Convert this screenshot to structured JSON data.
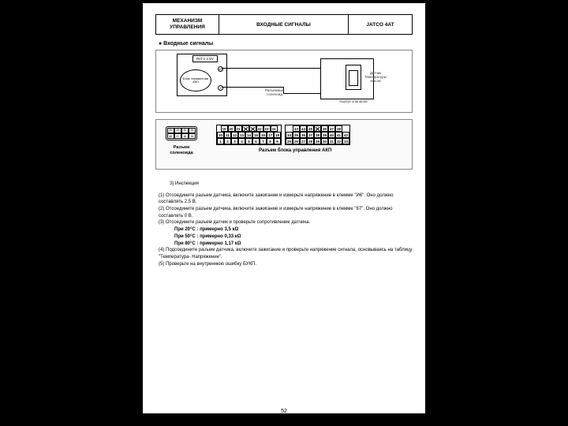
{
  "header": {
    "col1": "МЕХАНИЗМ УПРАВЛЕНИЯ",
    "col2": "ВХОДНЫЕ СИГНАЛЫ",
    "col3": "JATCO 4AT"
  },
  "section_title": "● Входные сигналы",
  "wiring": {
    "ref": "Ref V 2.5V",
    "ecu": "Блок Управления АКП",
    "pin_a": "46",
    "pin_b": "4",
    "solenoid_conn": "Разъемный соленоид",
    "sensor": "Датчик Температуры масла",
    "body": "Корпус клапанов",
    "pin_r1": "80",
    "pin_r2": "87"
  },
  "sol_connector": {
    "pins": [
      "84",
      "83",
      "82",
      "81",
      "88",
      "87",
      "86",
      "85"
    ],
    "label": "Разъем соленоида"
  },
  "akp_connector": {
    "label": "Разъем блока управления АКП",
    "block1": [
      [
        "19",
        "20",
        "21",
        "",
        "",
        "22",
        "23",
        "24"
      ],
      [
        "10",
        "11",
        "12",
        "13",
        "14",
        "15",
        "16",
        "17",
        "18"
      ],
      [
        "1",
        "2",
        "3",
        "4",
        "5",
        "6",
        "7",
        "8",
        "9"
      ]
    ],
    "block1_crossed": [
      [
        0,
        3
      ],
      [
        0,
        4
      ]
    ],
    "block2": [
      [
        "43",
        "44",
        "45",
        "",
        "46",
        "47",
        "48"
      ],
      [
        "34",
        "35",
        "36",
        "37",
        "38",
        "39",
        "40",
        "41",
        "42"
      ],
      [
        "25",
        "26",
        "27",
        "28",
        "29",
        "30",
        "31",
        "32",
        "33"
      ]
    ],
    "block2_crossed": [
      [
        0,
        3
      ]
    ]
  },
  "inspection": {
    "title": "3) Инспекция",
    "lines": [
      "(1) Отсоедините разъем датчика, включите зажигание и измерьте напряжение в клемме \"И6\". Оно должно составлять 2,5 В.",
      "(2) Отсоедините разъем датчика, включите зажигание и измерьте напряжение в клемме \"87\". Оно должно составлять 0 В.",
      "(3) Отсоедините разъем датчик и проверьте сопротивление датчика."
    ],
    "values": [
      "При 20°C : примерно 3,5 кΩ",
      "При 50°C : примерно 0,33 кΩ",
      "При  80°C : примерно 1,17 кΩ"
    ],
    "lines2": [
      "(4) Подсоедините разъем датчика, включите зажигание и проверьте напряжение сигнала, основываясь на таблицу \"Температура- Напряжение\".",
      "(5) Проверьте на внутреннюю ошибку БУКП."
    ]
  },
  "page_number": "52",
  "colors": {
    "page_bg": "#ffffff",
    "panel_bg": "#fafafa",
    "border": "#888888",
    "text": "#000000"
  }
}
